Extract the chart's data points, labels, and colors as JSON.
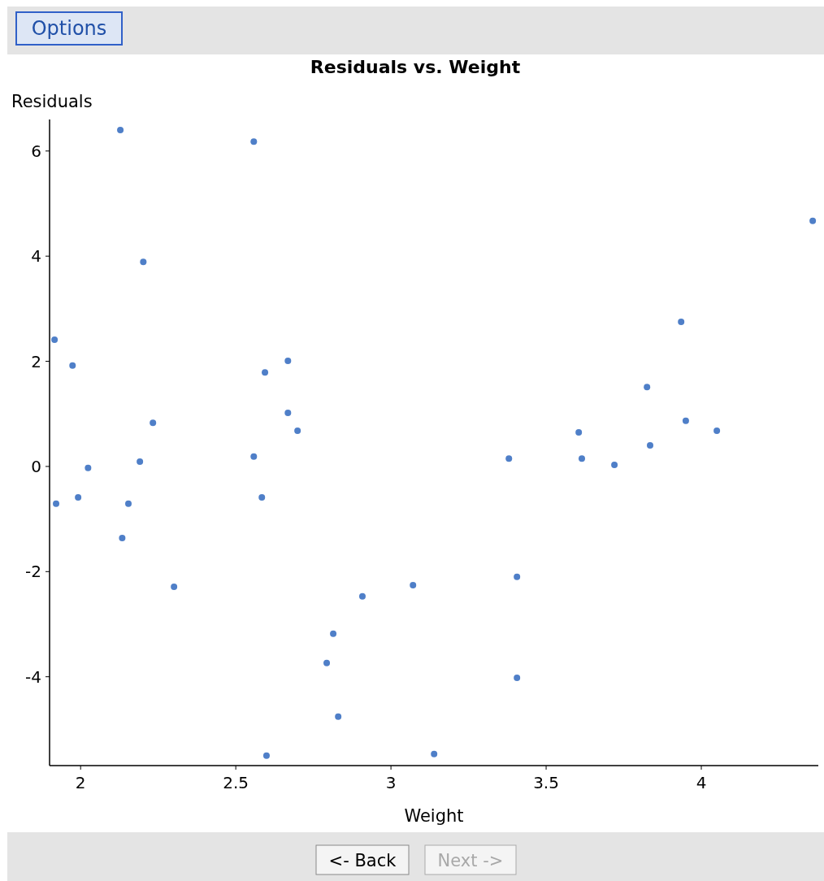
{
  "chart_data": {
    "type": "scatter",
    "title": "Residuals vs. Weight",
    "xlabel": "Weight",
    "ylabel": "Residuals",
    "annotations": [
      "Options",
      "<- Back",
      "Next ->"
    ],
    "xlim": [
      1.9,
      4.377
    ],
    "ylim": [
      -5.69,
      6.6
    ],
    "xticks": [
      2,
      2.5,
      3,
      3.5,
      4
    ],
    "yticks": [
      -4,
      -2,
      0,
      2,
      4,
      6
    ],
    "grid": false,
    "marker": "circle",
    "series": [
      {
        "color": "#4f7fc8",
        "x": [
          1.916,
          1.921,
          1.974,
          1.992,
          2.024,
          2.128,
          2.134,
          2.154,
          2.191,
          2.202,
          2.233,
          2.301,
          2.558,
          2.558,
          2.584,
          2.594,
          2.599,
          2.668,
          2.668,
          2.699,
          2.793,
          2.814,
          2.83,
          2.908,
          3.071,
          3.139,
          3.38,
          3.406,
          3.406,
          3.605,
          3.615,
          3.72,
          3.825,
          3.835,
          3.935,
          3.95,
          4.05,
          4.359
        ],
        "values": [
          2.41,
          -0.71,
          1.92,
          -0.59,
          -0.03,
          6.4,
          -1.36,
          -0.71,
          0.09,
          3.89,
          0.83,
          -2.29,
          6.18,
          0.19,
          -0.59,
          1.79,
          -5.5,
          2.01,
          1.02,
          0.68,
          -3.74,
          -3.18,
          -4.76,
          -2.47,
          -2.26,
          -5.47,
          0.15,
          -2.1,
          -4.02,
          0.65,
          0.15,
          0.03,
          1.51,
          0.4,
          2.75,
          0.87,
          0.68,
          4.67
        ]
      }
    ]
  }
}
